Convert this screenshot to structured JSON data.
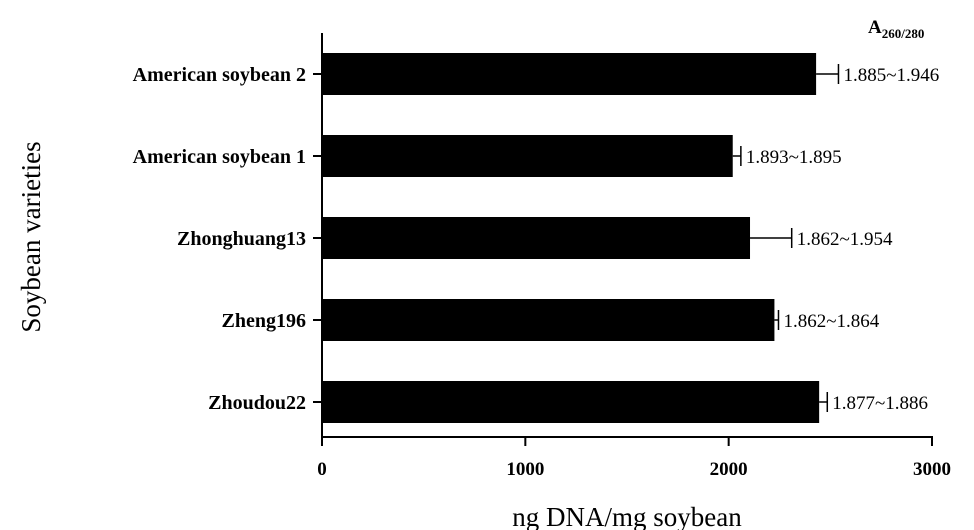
{
  "chart_data": {
    "type": "bar",
    "orientation": "horizontal",
    "categories": [
      "American soybean 2",
      "American soybean 1",
      "Zhonghuang13",
      "Zheng196",
      "Zhoudou22"
    ],
    "values": [
      2430,
      2020,
      2105,
      2225,
      2445
    ],
    "errors": [
      110,
      40,
      205,
      20,
      40
    ],
    "data_labels": [
      "1.885~1.946",
      "1.893~1.895",
      "1.862~1.954",
      "1.862~1.864",
      "1.877~1.886"
    ],
    "xlabel": "ng DNA/mg soybean",
    "ylabel": "Soybean varieties",
    "xlim": [
      0,
      3000
    ],
    "xticks": [
      0,
      1000,
      2000,
      3000
    ],
    "xtick_labels": [
      "0",
      "1000",
      "2000",
      "3000"
    ],
    "label_header": "A",
    "label_header_sub": "260/280",
    "bar_color": "#000000",
    "grid": false
  }
}
